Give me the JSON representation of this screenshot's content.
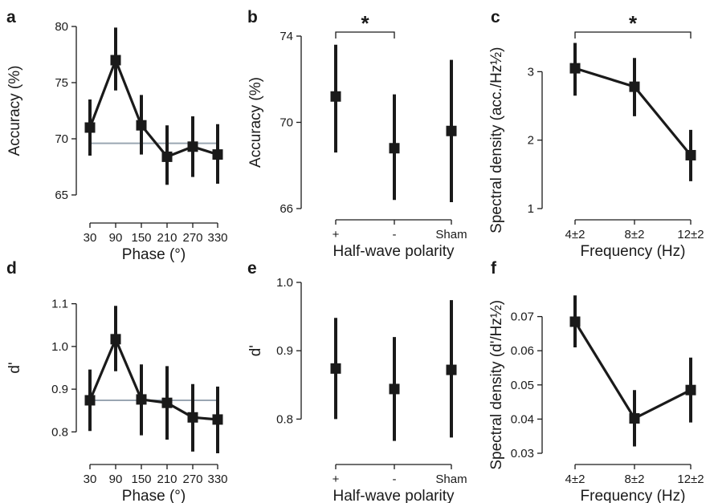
{
  "chart_data": [
    {
      "panel": "a",
      "type": "line",
      "categories": [
        "30",
        "90",
        "150",
        "210",
        "270",
        "330"
      ],
      "values": [
        71.0,
        77.0,
        71.2,
        68.4,
        69.3,
        68.6
      ],
      "err_low": [
        68.5,
        74.3,
        68.6,
        65.9,
        66.6,
        66.0
      ],
      "err_high": [
        73.5,
        79.9,
        73.9,
        71.2,
        72.0,
        71.3
      ],
      "ref_value": 69.6,
      "xlabel": "Phase (°)",
      "ylabel": "Accuracy (%)",
      "ylim": [
        63.5,
        80
      ],
      "yticks": [
        65,
        70,
        75,
        80
      ],
      "show_line": true,
      "show_ref": true
    },
    {
      "panel": "b",
      "type": "scatter",
      "categories": [
        "+",
        "-",
        "Sham"
      ],
      "values": [
        71.2,
        68.8,
        69.6
      ],
      "err_low": [
        68.6,
        66.4,
        66.3
      ],
      "err_high": [
        73.6,
        71.3,
        72.9
      ],
      "xlabel": "Half-wave polarity",
      "ylabel": "Accuracy (%)",
      "ylim": [
        66,
        74
      ],
      "yticks": [
        66,
        70,
        74
      ],
      "show_line": false,
      "show_ref": false,
      "significance": {
        "from": 0,
        "to": 1,
        "label": "*"
      }
    },
    {
      "panel": "c",
      "type": "line",
      "categories": [
        "4±2",
        "8±2",
        "12±2"
      ],
      "values": [
        3.05,
        2.78,
        1.78
      ],
      "err_low": [
        2.65,
        2.35,
        1.4
      ],
      "err_high": [
        3.42,
        3.2,
        2.15
      ],
      "xlabel": "Frequency (Hz)",
      "ylabel": "Spectral density (acc./Hz½)",
      "ylim": [
        1,
        3.52
      ],
      "yticks": [
        1,
        2,
        3
      ],
      "show_line": true,
      "show_ref": false,
      "significance": {
        "from": 0,
        "to": 2,
        "label": "*"
      }
    },
    {
      "panel": "d",
      "type": "line",
      "categories": [
        "30",
        "90",
        "150",
        "210",
        "270",
        "330"
      ],
      "values": [
        0.874,
        1.017,
        0.876,
        0.868,
        0.834,
        0.829
      ],
      "err_low": [
        0.802,
        0.942,
        0.792,
        0.782,
        0.754,
        0.75
      ],
      "err_high": [
        0.946,
        1.095,
        0.958,
        0.954,
        0.912,
        0.906
      ],
      "ref_value": 0.874,
      "xlabel": "Phase (°)",
      "ylabel": "d'",
      "ylim": [
        0.75,
        1.15
      ],
      "yticks": [
        0.8,
        0.9,
        1.0,
        1.1
      ],
      "show_line": true,
      "show_ref": true
    },
    {
      "panel": "e",
      "type": "scatter",
      "categories": [
        "+",
        "-",
        "Sham"
      ],
      "values": [
        0.874,
        0.844,
        0.872
      ],
      "err_low": [
        0.8,
        0.768,
        0.773
      ],
      "err_high": [
        0.948,
        0.92,
        0.974
      ],
      "xlabel": "Half-wave polarity",
      "ylabel": "d'",
      "ylim": [
        0.75,
        1.0
      ],
      "yticks": [
        0.8,
        0.9,
        1.0
      ],
      "show_line": false,
      "show_ref": false
    },
    {
      "panel": "f",
      "type": "line",
      "categories": [
        "4±2",
        "8±2",
        "12±2"
      ],
      "values": [
        0.0685,
        0.0402,
        0.0485
      ],
      "err_low": [
        0.061,
        0.032,
        0.039
      ],
      "err_high": [
        0.0762,
        0.0485,
        0.058
      ],
      "xlabel": "Frequency (Hz)",
      "ylabel": "Spectral density (d'/Hz½)",
      "ylim": [
        0.03,
        0.08
      ],
      "yticks": [
        0.03,
        0.04,
        0.05,
        0.06,
        0.07
      ],
      "show_line": true,
      "show_ref": false
    }
  ]
}
